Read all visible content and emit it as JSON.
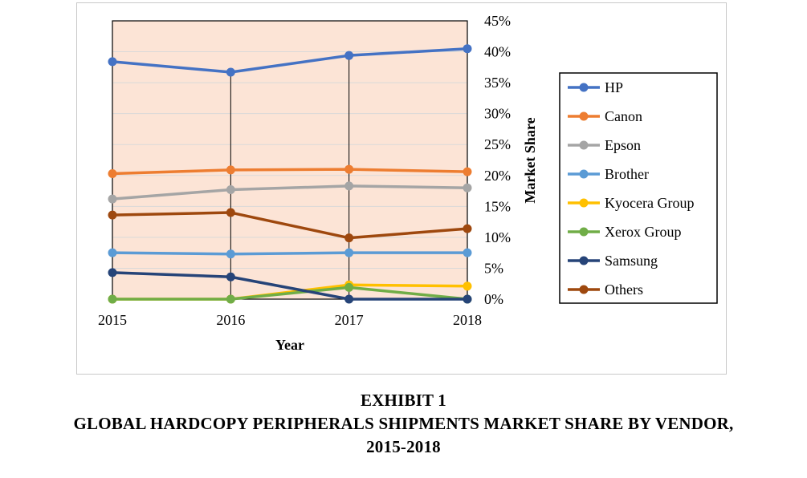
{
  "chart_data": {
    "type": "line",
    "title": "",
    "xlabel": "Year",
    "ylabel": "Market Share",
    "categories": [
      "2015",
      "2016",
      "2017",
      "2018"
    ],
    "y_ticks": [
      "0%",
      "5%",
      "10%",
      "15%",
      "20%",
      "25%",
      "30%",
      "35%",
      "40%",
      "45%"
    ],
    "ylim": [
      0,
      45
    ],
    "y_axis_side": "right",
    "grid": true,
    "legend_position": "right",
    "plot_background": "#FCE4D6",
    "series": [
      {
        "name": "HP",
        "color": "#4472C4",
        "values": [
          38.4,
          36.7,
          39.4,
          40.5
        ]
      },
      {
        "name": "Canon",
        "color": "#ED7D31",
        "values": [
          20.3,
          20.9,
          21.0,
          20.6
        ]
      },
      {
        "name": "Epson",
        "color": "#A5A5A5",
        "values": [
          16.2,
          17.7,
          18.3,
          18.0
        ]
      },
      {
        "name": "Brother",
        "color": "#5B9BD5",
        "values": [
          7.5,
          7.3,
          7.5,
          7.5
        ]
      },
      {
        "name": "Kyocera Group",
        "color": "#FFC000",
        "values": [
          0.0,
          0.0,
          2.3,
          2.1
        ]
      },
      {
        "name": "Xerox Group",
        "color": "#70AD47",
        "values": [
          0.0,
          0.0,
          1.9,
          0.0
        ]
      },
      {
        "name": "Samsung",
        "color": "#264478",
        "values": [
          4.3,
          3.6,
          0.0,
          0.0
        ]
      },
      {
        "name": "Others",
        "color": "#9E480E",
        "values": [
          13.6,
          14.0,
          9.9,
          11.4
        ]
      }
    ]
  },
  "caption": {
    "line1": "EXHIBIT 1",
    "line2": "GLOBAL HARDCOPY PERIPHERALS SHIPMENTS MARKET SHARE BY VENDOR,",
    "line3": "2015-2018"
  }
}
